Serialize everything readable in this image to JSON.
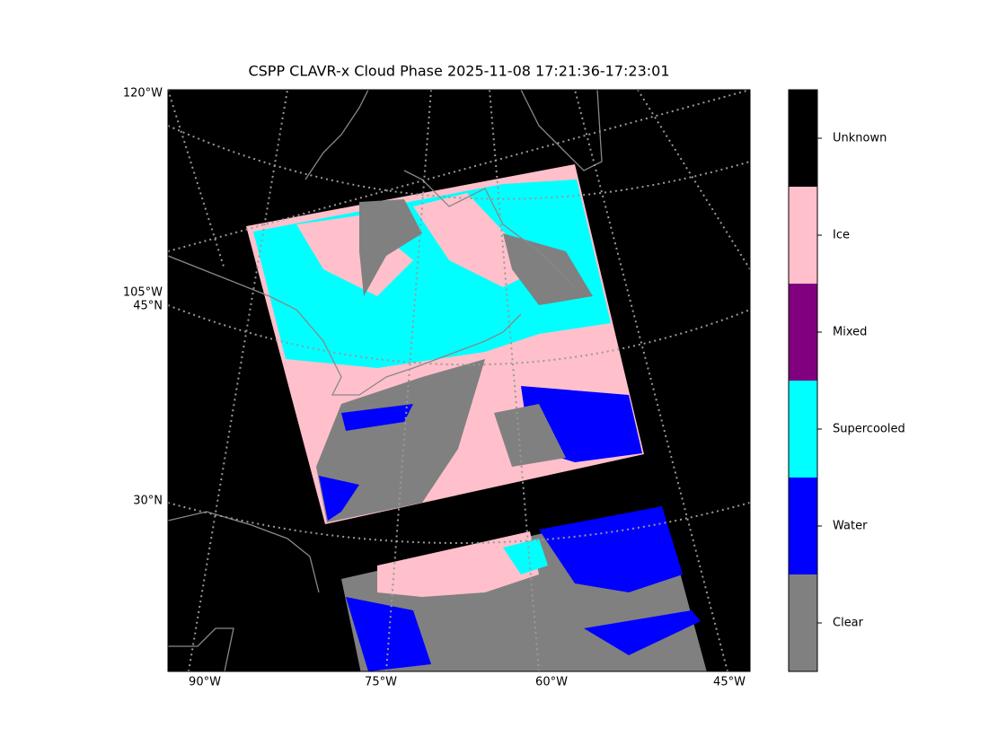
{
  "title": "CSPP CLAVR-x Cloud Phase 2025-11-08 17:21:36-17:23:01",
  "map": {
    "left_labels": [
      "120°W",
      "105°W",
      "45°N",
      "30°N"
    ],
    "bottom_labels": [
      "90°W",
      "75°W",
      "60°W",
      "45°W"
    ]
  },
  "colorbar": {
    "classes": [
      {
        "label": "Clear",
        "color": "#808080"
      },
      {
        "label": "Water",
        "color": "#0000ff"
      },
      {
        "label": "Supercooled",
        "color": "#00ffff"
      },
      {
        "label": "Mixed",
        "color": "#800080"
      },
      {
        "label": "Ice",
        "color": "#ffc0cb"
      },
      {
        "label": "Unknown",
        "color": "#000000"
      }
    ]
  }
}
